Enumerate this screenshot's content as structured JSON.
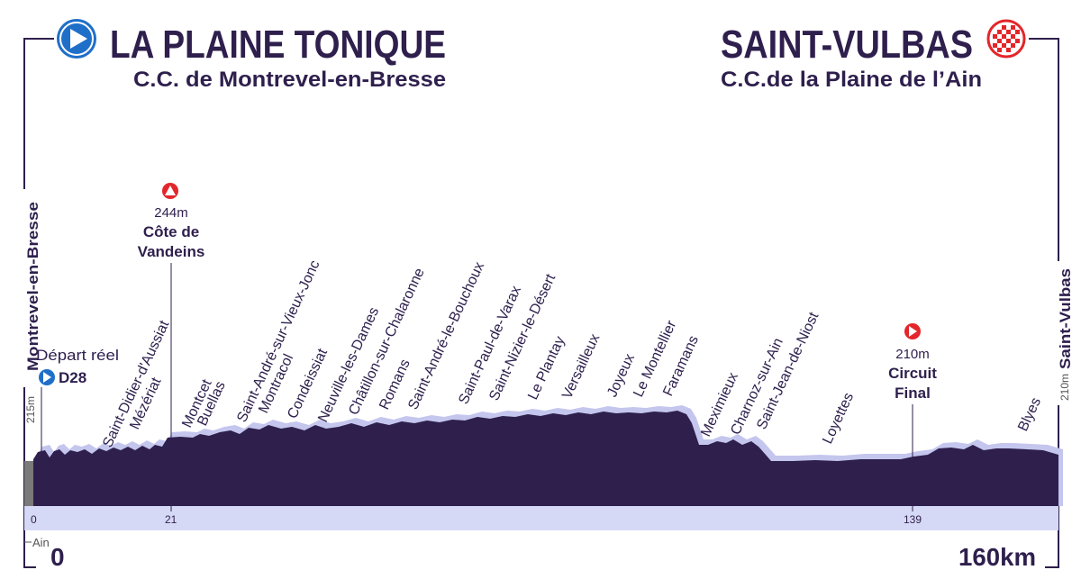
{
  "start": {
    "name": "LA PLAINE TONIQUE",
    "subtitle": "C.C. de Montrevel-en-Bresse",
    "vertical_label": "Montrevel-en-Bresse",
    "altitude": "215m",
    "km_label": "0"
  },
  "finish": {
    "name": "SAINT-VULBAS",
    "subtitle": "C.C.de la Plaine de l’Ain",
    "vertical_label": "Saint-Vulbas",
    "altitude": "210m",
    "km_label": "160km"
  },
  "depart_reel": {
    "label": "Départ réel",
    "road": "D28"
  },
  "department": "Ain",
  "climb": {
    "altitude": "244m",
    "name_line1": "Côte de",
    "name_line2": "Vandeins",
    "km": "21"
  },
  "circuit": {
    "altitude": "210m",
    "name_line1": "Circuit",
    "name_line2": "Final",
    "km": "139"
  },
  "km_axis_start": "0",
  "localities": [
    "Saint-Didier-d'Aussiat",
    "Mézériat",
    "Montcet",
    "Buellas",
    "Saint-André-sur-Vieux-Jonc",
    "Montracol",
    "Condeissiat",
    "Neuville-les-Dames",
    "Châtillon-sur-Chalaronne",
    "Romans",
    "Saint-André-le-Bouchoux",
    "Saint-Paul-de-Varax",
    "Saint-Nizier-le-Désert",
    "Le Plantay",
    "Versailleux",
    "Joyeux",
    "Le Montellier",
    "Faramans",
    "Meximieux",
    "Charnoz-sur-Ain",
    "Saint-Jean-de-Niost",
    "Loyettes",
    "Blyes"
  ],
  "colors": {
    "profile": "#2e1f4d",
    "band": "#d6d9f5",
    "title": "#2e1f4d",
    "start_icon": "#1f6fc9",
    "red": "#e3262b",
    "grey": "#888888"
  }
}
